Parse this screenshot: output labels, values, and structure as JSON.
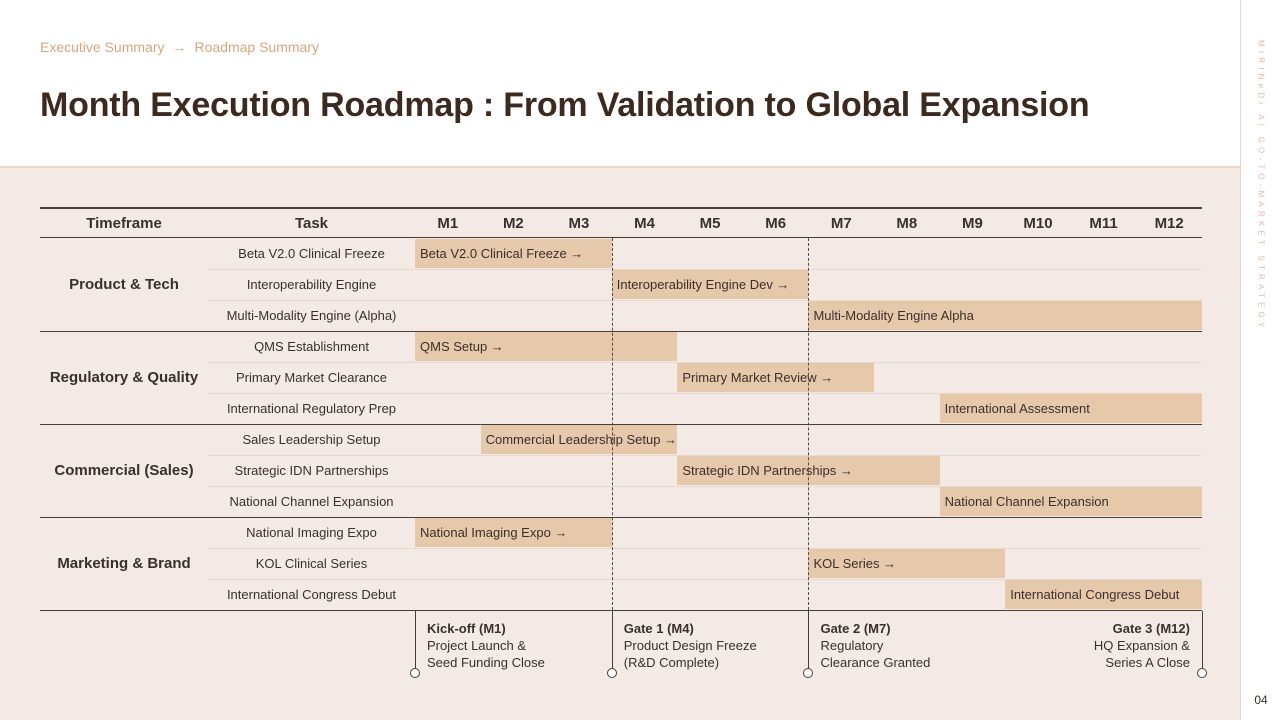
{
  "breadcrumb": {
    "items": [
      "Executive Summary",
      "Roadmap Summary"
    ],
    "separator": "→"
  },
  "title": "Month Execution Roadmap : From Validation to Global Expansion",
  "side_label": "MIRINeDi AI GO-TO-MARKET STRATEGY",
  "page_number": "04",
  "colors": {
    "bar": "#e6c8ab",
    "bar_light": "#eedac6",
    "accent": "#d6a77f",
    "background": "#f3e9e5"
  },
  "table": {
    "headers": {
      "timeframe": "Timeframe",
      "task": "Task"
    },
    "months": [
      "M1",
      "M2",
      "M3",
      "M4",
      "M5",
      "M6",
      "M7",
      "M8",
      "M9",
      "M10",
      "M11",
      "M12"
    ],
    "gate_after_months": [
      3,
      6
    ],
    "groups": [
      {
        "category": "Product & Tech",
        "tasks": [
          {
            "name": "Beta V2.0 Clinical Freeze",
            "bar": "Beta V2.0 Clinical Freeze →",
            "start": 1,
            "end": 3
          },
          {
            "name": "Interoperability Engine",
            "bar": "Interoperability Engine Dev →",
            "start": 4,
            "end": 6
          },
          {
            "name": "Multi-Modality Engine (Alpha)",
            "bar": "Multi-Modality Engine Alpha",
            "start": 7,
            "end": 12
          }
        ]
      },
      {
        "category": "Regulatory & Quality",
        "tasks": [
          {
            "name": "QMS Establishment",
            "bar": "QMS Setup →",
            "start": 1,
            "end": 4
          },
          {
            "name": "Primary Market Clearance",
            "bar": "Primary Market Review →",
            "start": 5,
            "end": 7
          },
          {
            "name": "International Regulatory Prep",
            "bar": "International Assessment",
            "start": 9,
            "end": 12
          }
        ]
      },
      {
        "category": "Commercial (Sales)",
        "tasks": [
          {
            "name": "Sales Leadership Setup",
            "bar": "Commercial Leadership Setup →",
            "start": 2,
            "end": 4
          },
          {
            "name": "Strategic IDN Partnerships",
            "bar": "Strategic IDN Partnerships →",
            "start": 5,
            "end": 8
          },
          {
            "name": "National Channel Expansion",
            "bar": "National Channel Expansion",
            "start": 9,
            "end": 12
          }
        ]
      },
      {
        "category": "Marketing & Brand",
        "tasks": [
          {
            "name": "National Imaging Expo",
            "bar": "National Imaging Expo →",
            "start": 1,
            "end": 3
          },
          {
            "name": "KOL Clinical Series",
            "bar": "KOL Series →",
            "start": 7,
            "end": 9
          },
          {
            "name": "International Congress Debut",
            "bar": "International Congress Debut",
            "start": 10,
            "end": 12
          }
        ]
      }
    ]
  },
  "milestones": [
    {
      "title": "Kick-off (M1)",
      "lines": [
        "Project Launch &",
        "Seed Funding Close"
      ],
      "month": 1,
      "anchor": "start"
    },
    {
      "title": "Gate 1 (M4)",
      "lines": [
        "Product Design Freeze",
        "(R&D Complete)"
      ],
      "month": 4,
      "anchor": "end"
    },
    {
      "title": "Gate 2 (M7)",
      "lines": [
        "Regulatory",
        "Clearance Granted"
      ],
      "month": 7,
      "anchor": "end"
    },
    {
      "title": "Gate 3 (M12)",
      "lines": [
        "HQ Expansion &",
        "Series A Close"
      ],
      "month": 12,
      "anchor": "end"
    }
  ]
}
